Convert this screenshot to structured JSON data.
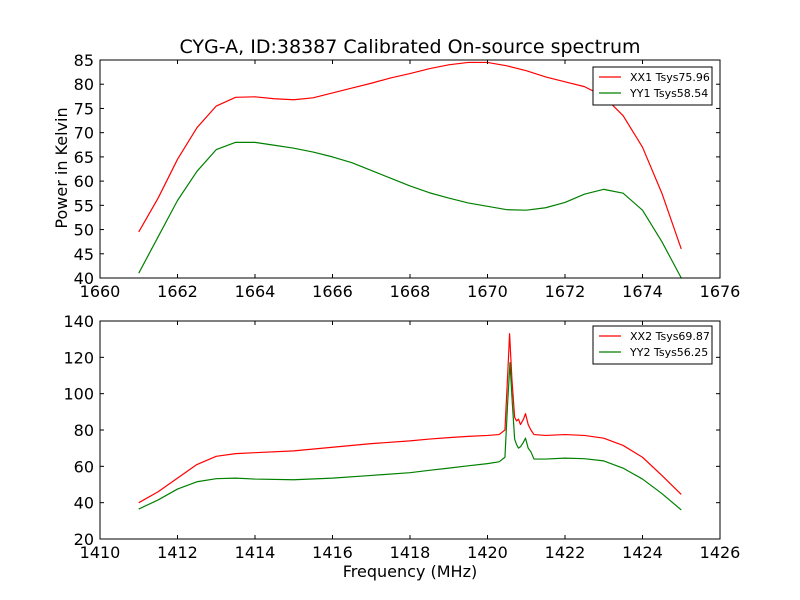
{
  "figure": {
    "title": "CYG-A, ID:38387 Calibrated On-source spectrum",
    "ylabel": "Power in Kelvin",
    "xlabel": "Frequency (MHz)"
  },
  "colors": {
    "xx": "#ff0000",
    "yy": "#008000"
  },
  "chart_data": [
    {
      "type": "line",
      "title": "CYG-A, ID:38387 Calibrated On-source spectrum",
      "ylabel": "Power in Kelvin",
      "xlabel": "",
      "xlim": [
        1660,
        1676
      ],
      "ylim": [
        40,
        85
      ],
      "xticks": [
        1660,
        1662,
        1664,
        1666,
        1668,
        1670,
        1672,
        1674,
        1676
      ],
      "yticks": [
        40,
        45,
        50,
        55,
        60,
        65,
        70,
        75,
        80,
        85
      ],
      "grid": false,
      "legend_position": "top-right",
      "series": [
        {
          "name": "XX1 Tsys75.96",
          "color": "#ff0000",
          "points": [
            [
              1661,
              49.5
            ],
            [
              1661.5,
              56.5
            ],
            [
              1662,
              64.5
            ],
            [
              1662.5,
              71
            ],
            [
              1663,
              75.5
            ],
            [
              1663.5,
              77.3
            ],
            [
              1664,
              77.4
            ],
            [
              1664.5,
              77
            ],
            [
              1665,
              76.8
            ],
            [
              1665.5,
              77.2
            ],
            [
              1666,
              78.2
            ],
            [
              1666.5,
              79.2
            ],
            [
              1667,
              80.2
            ],
            [
              1667.5,
              81.3
            ],
            [
              1668,
              82.2
            ],
            [
              1668.5,
              83.2
            ],
            [
              1669,
              84
            ],
            [
              1669.5,
              84.5
            ],
            [
              1670,
              84.5
            ],
            [
              1670.5,
              83.8
            ],
            [
              1671,
              82.8
            ],
            [
              1671.5,
              81.5
            ],
            [
              1672,
              80.5
            ],
            [
              1672.5,
              79.5
            ],
            [
              1673,
              77.5
            ],
            [
              1673.5,
              73.5
            ],
            [
              1674,
              67
            ],
            [
              1674.5,
              57.5
            ],
            [
              1675,
              46
            ]
          ]
        },
        {
          "name": "YY1 Tsys58.54",
          "color": "#008000",
          "points": [
            [
              1661,
              41
            ],
            [
              1661.5,
              48.5
            ],
            [
              1662,
              56
            ],
            [
              1662.5,
              62
            ],
            [
              1663,
              66.5
            ],
            [
              1663.5,
              68
            ],
            [
              1664,
              68
            ],
            [
              1664.5,
              67.4
            ],
            [
              1665,
              66.8
            ],
            [
              1665.5,
              66
            ],
            [
              1666,
              65
            ],
            [
              1666.5,
              63.8
            ],
            [
              1667,
              62.2
            ],
            [
              1667.5,
              60.6
            ],
            [
              1668,
              59
            ],
            [
              1668.5,
              57.6
            ],
            [
              1669,
              56.5
            ],
            [
              1669.5,
              55.5
            ],
            [
              1670,
              54.8
            ],
            [
              1670.5,
              54.1
            ],
            [
              1671,
              54
            ],
            [
              1671.5,
              54.5
            ],
            [
              1672,
              55.6
            ],
            [
              1672.5,
              57.3
            ],
            [
              1673,
              58.3
            ],
            [
              1673.5,
              57.5
            ],
            [
              1674,
              54
            ],
            [
              1674.5,
              47.5
            ],
            [
              1675,
              40
            ]
          ]
        }
      ]
    },
    {
      "type": "line",
      "title": "",
      "ylabel": "",
      "xlabel": "Frequency (MHz)",
      "xlim": [
        1410,
        1426
      ],
      "ylim": [
        20,
        140
      ],
      "xticks": [
        1410,
        1412,
        1414,
        1416,
        1418,
        1420,
        1422,
        1424,
        1426
      ],
      "yticks": [
        20,
        40,
        60,
        80,
        100,
        120,
        140
      ],
      "grid": false,
      "legend_position": "top-right",
      "series": [
        {
          "name": "XX2 Tsys69.87",
          "color": "#ff0000",
          "points": [
            [
              1411,
              40
            ],
            [
              1411.5,
              46
            ],
            [
              1412,
              53.5
            ],
            [
              1412.5,
              61
            ],
            [
              1413,
              65.5
            ],
            [
              1413.5,
              67
            ],
            [
              1414,
              67.5
            ],
            [
              1415,
              68.5
            ],
            [
              1416,
              70.5
            ],
            [
              1417,
              72.5
            ],
            [
              1418,
              74
            ],
            [
              1418.5,
              75
            ],
            [
              1419,
              75.8
            ],
            [
              1419.5,
              76.5
            ],
            [
              1420,
              77
            ],
            [
              1420.3,
              77.5
            ],
            [
              1420.45,
              80
            ],
            [
              1420.52,
              110
            ],
            [
              1420.57,
              133
            ],
            [
              1420.63,
              108
            ],
            [
              1420.7,
              87
            ],
            [
              1420.75,
              85
            ],
            [
              1420.8,
              86
            ],
            [
              1420.85,
              83
            ],
            [
              1420.93,
              86
            ],
            [
              1420.98,
              89
            ],
            [
              1421.05,
              83
            ],
            [
              1421.12,
              80
            ],
            [
              1421.2,
              77.5
            ],
            [
              1421.5,
              77
            ],
            [
              1422,
              77.5
            ],
            [
              1422.5,
              77
            ],
            [
              1423,
              75.5
            ],
            [
              1423.5,
              71.5
            ],
            [
              1424,
              65
            ],
            [
              1424.5,
              55
            ],
            [
              1425,
              44.5
            ]
          ]
        },
        {
          "name": "YY2 Tsys56.25",
          "color": "#008000",
          "points": [
            [
              1411,
              36.5
            ],
            [
              1411.5,
              41.5
            ],
            [
              1412,
              47.5
            ],
            [
              1412.5,
              51.5
            ],
            [
              1413,
              53.2
            ],
            [
              1413.5,
              53.5
            ],
            [
              1414,
              53
            ],
            [
              1415,
              52.6
            ],
            [
              1416,
              53.5
            ],
            [
              1417,
              55
            ],
            [
              1418,
              56.5
            ],
            [
              1418.5,
              57.8
            ],
            [
              1419,
              59
            ],
            [
              1419.5,
              60.3
            ],
            [
              1420,
              61.5
            ],
            [
              1420.3,
              62.5
            ],
            [
              1420.45,
              65
            ],
            [
              1420.52,
              95
            ],
            [
              1420.58,
              117
            ],
            [
              1420.64,
              95
            ],
            [
              1420.7,
              75
            ],
            [
              1420.75,
              72
            ],
            [
              1420.8,
              70
            ],
            [
              1420.86,
              71
            ],
            [
              1420.92,
              73
            ],
            [
              1420.98,
              75.5
            ],
            [
              1421.05,
              70
            ],
            [
              1421.12,
              68
            ],
            [
              1421.2,
              64
            ],
            [
              1421.5,
              64
            ],
            [
              1422,
              64.5
            ],
            [
              1422.5,
              64.2
            ],
            [
              1423,
              63
            ],
            [
              1423.5,
              59
            ],
            [
              1424,
              53
            ],
            [
              1424.5,
              45
            ],
            [
              1425,
              36
            ]
          ]
        }
      ]
    }
  ]
}
